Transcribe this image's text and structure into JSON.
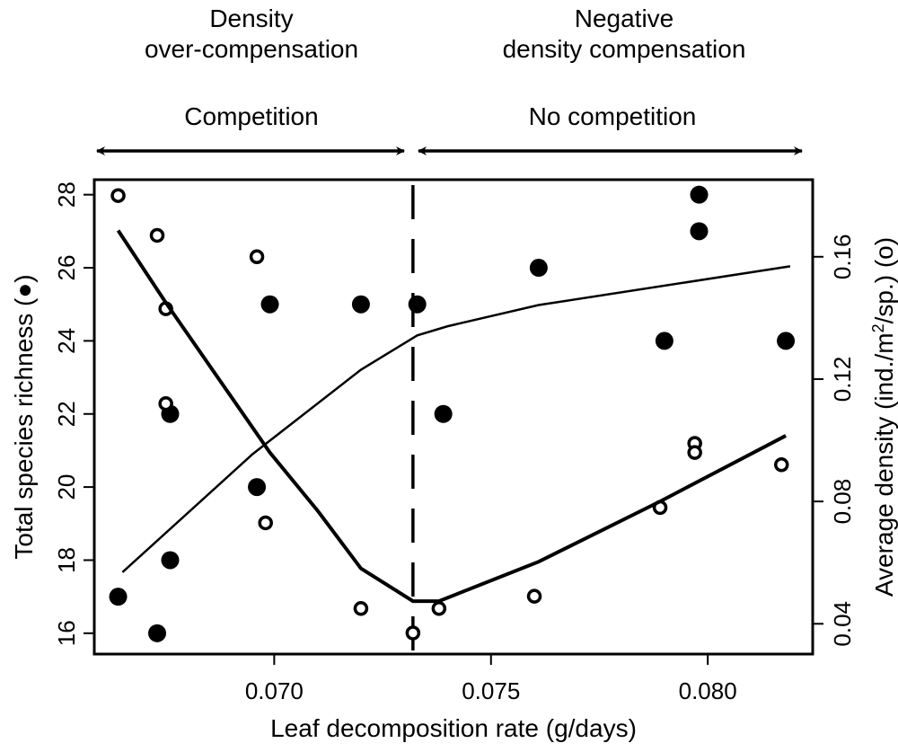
{
  "chart_data": {
    "type": "scatter",
    "xlabel": "Leaf decomposition rate (g/days)",
    "ylabel_left": "Total species richness (●)",
    "ylabel_right": {
      "pre": "Average density (ind./m",
      "sup": "2",
      "post": "/sp.)  (o)"
    },
    "xlim": [
      0.06585,
      0.08242
    ],
    "ylim_left": [
      15.43,
      28.41
    ],
    "ylim_right": [
      0.0301,
      0.1852
    ],
    "x_ticks": [
      {
        "v": 0.07,
        "label": "0.070"
      },
      {
        "v": 0.075,
        "label": "0.075"
      },
      {
        "v": 0.08,
        "label": "0.080"
      }
    ],
    "y_left_ticks": [
      {
        "v": 16,
        "label": "16"
      },
      {
        "v": 18,
        "label": "18"
      },
      {
        "v": 20,
        "label": "20"
      },
      {
        "v": 22,
        "label": "22"
      },
      {
        "v": 24,
        "label": "24"
      },
      {
        "v": 26,
        "label": "26"
      },
      {
        "v": 28,
        "label": "28"
      }
    ],
    "y_right_ticks": [
      {
        "v": 0.04,
        "label": "0.04"
      },
      {
        "v": 0.08,
        "label": "0.08"
      },
      {
        "v": 0.12,
        "label": "0.12"
      },
      {
        "v": 0.16,
        "label": "0.16"
      }
    ],
    "grid": false,
    "threshold_x": 0.0732,
    "series": [
      {
        "axis": "left",
        "marker": "filled-circle",
        "points": [
          [
            0.0664,
            17
          ],
          [
            0.0673,
            16
          ],
          [
            0.0676,
            18
          ],
          [
            0.0676,
            22
          ],
          [
            0.0696,
            20
          ],
          [
            0.0699,
            25
          ],
          [
            0.072,
            25
          ],
          [
            0.0733,
            25
          ],
          [
            0.0739,
            22
          ],
          [
            0.0761,
            26
          ],
          [
            0.079,
            24
          ],
          [
            0.0798,
            28
          ],
          [
            0.0798,
            27
          ],
          [
            0.0818,
            24
          ]
        ]
      },
      {
        "axis": "right",
        "marker": "open-circle",
        "points": [
          [
            0.0664,
            0.18
          ],
          [
            0.0673,
            0.167
          ],
          [
            0.0675,
            0.143
          ],
          [
            0.0675,
            0.112
          ],
          [
            0.0696,
            0.16
          ],
          [
            0.0698,
            0.073
          ],
          [
            0.072,
            0.045
          ],
          [
            0.0732,
            0.037
          ],
          [
            0.0738,
            0.045
          ],
          [
            0.076,
            0.049
          ],
          [
            0.0789,
            0.078
          ],
          [
            0.0797,
            0.099
          ],
          [
            0.0797,
            0.096
          ],
          [
            0.0817,
            0.092
          ]
        ]
      },
      {
        "axis": "left",
        "marker": "none",
        "line": "thin",
        "points": [
          [
            0.0665,
            17.67
          ],
          [
            0.0695,
            20.9
          ],
          [
            0.072,
            23.21
          ],
          [
            0.0733,
            24.15
          ],
          [
            0.074,
            24.4
          ],
          [
            0.0761,
            24.98
          ],
          [
            0.0819,
            26.04
          ]
        ]
      },
      {
        "axis": "right",
        "marker": "none",
        "line": "thick",
        "points": [
          [
            0.0664,
            0.1686
          ],
          [
            0.0675,
            0.145
          ],
          [
            0.0699,
            0.096
          ],
          [
            0.071,
            0.077
          ],
          [
            0.072,
            0.0581
          ],
          [
            0.0732,
            0.0474
          ],
          [
            0.0738,
            0.0474
          ],
          [
            0.0761,
            0.0603
          ],
          [
            0.0789,
            0.08
          ],
          [
            0.0818,
            0.1015
          ]
        ]
      }
    ],
    "annotations": {
      "left_top_1": "Density",
      "left_top_2": "over-compensation",
      "right_top_1": "Negative",
      "right_top_2": "density compensation",
      "left_arrow_label": "Competition",
      "right_arrow_label": "No competition"
    }
  }
}
